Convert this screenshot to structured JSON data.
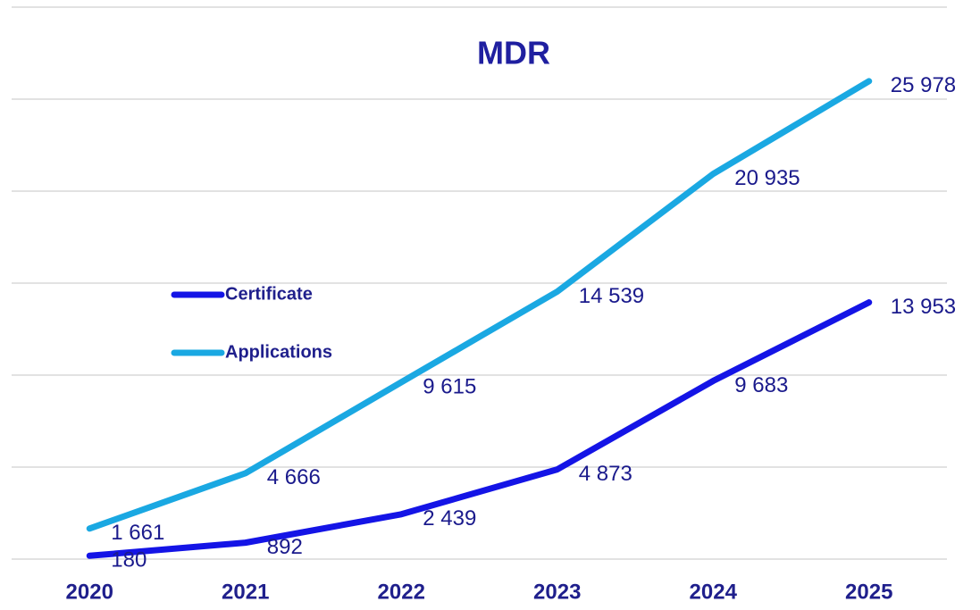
{
  "chart_data": {
    "type": "line",
    "title": "MDR",
    "categories": [
      "2020",
      "2021",
      "2022",
      "2023",
      "2024",
      "2025"
    ],
    "series": [
      {
        "name": "Certificate",
        "color": "#1414e6",
        "values": [
          180,
          892,
          2439,
          4873,
          9683,
          13953
        ],
        "value_labels": [
          "180",
          "892",
          "2 439",
          "4 873",
          "9 683",
          "13 953"
        ]
      },
      {
        "name": "Applications",
        "color": "#1aa8e2",
        "values": [
          1661,
          4666,
          9615,
          14539,
          20935,
          25978
        ],
        "value_labels": [
          "1 661",
          "4 666",
          "9 615",
          "14 539",
          "20 935",
          "25 978"
        ]
      }
    ],
    "ylim": [
      0,
      30000
    ],
    "yticks": [
      0,
      5000,
      10000,
      15000,
      20000,
      25000,
      30000
    ],
    "grid": true,
    "legend": "left"
  }
}
